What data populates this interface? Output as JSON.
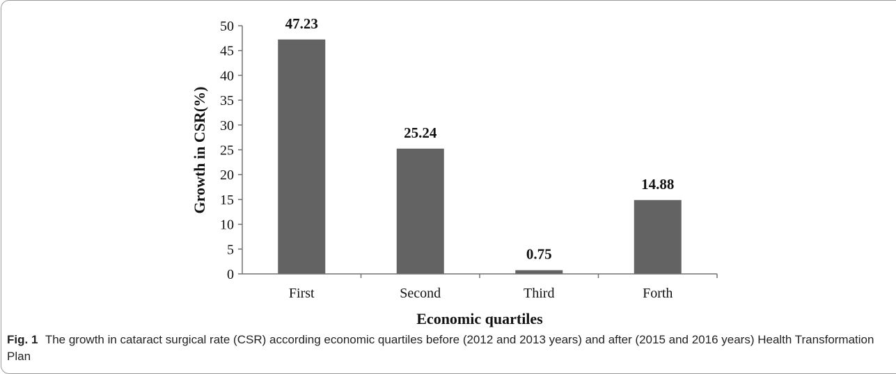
{
  "chart_data": {
    "type": "bar",
    "categories": [
      "First",
      "Second",
      "Third",
      "Forth"
    ],
    "values": [
      47.23,
      25.24,
      0.75,
      14.88
    ],
    "data_labels": [
      "47.23",
      "25.24",
      "0.75",
      "14.88"
    ],
    "xlabel": "Economic quartiles",
    "ylabel": "Growth in CSR(%)",
    "ylim": [
      0,
      50
    ],
    "yticks": [
      0,
      5,
      10,
      15,
      20,
      25,
      30,
      35,
      40,
      45,
      50
    ],
    "bar_color": "#636363",
    "grid": false,
    "legend": "none"
  },
  "caption": {
    "label": "Fig. 1",
    "text": "The growth in cataract surgical rate (CSR) according economic quartiles before (2012 and 2013 years) and after (2015 and 2016 years) Health Transformation Plan"
  }
}
